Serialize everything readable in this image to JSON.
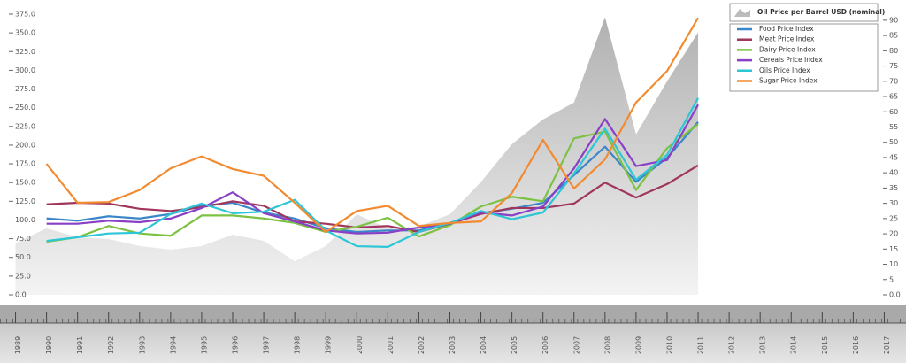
{
  "chart_data": {
    "type": "line",
    "x": [
      1989,
      1990,
      1991,
      1992,
      1993,
      1994,
      1995,
      1996,
      1997,
      1998,
      1999,
      2000,
      2001,
      2002,
      2003,
      2004,
      2005,
      2006,
      2007,
      2008,
      2009,
      2010,
      2011
    ],
    "series": [
      {
        "name": "Oil Price per Barrel USD (nominal)",
        "color": "#b8b8b8",
        "axis": "y2",
        "kind": "area",
        "values": [
          17,
          21.8,
          18.9,
          18.3,
          16,
          14.8,
          16,
          19.7,
          17.7,
          11,
          16,
          26.4,
          21.8,
          22.4,
          26.4,
          37,
          49.4,
          57.5,
          63,
          91,
          52.6,
          70,
          86
        ]
      },
      {
        "name": "Food Price Index",
        "color": "#3a86c8",
        "values": [
          null,
          102,
          99,
          105,
          102,
          108,
          119,
          123,
          110,
          102,
          89,
          84,
          86,
          86,
          96,
          109,
          115,
          123,
          160,
          198,
          151,
          183,
          231
        ]
      },
      {
        "name": "Meat Price Index",
        "color": "#a0365e",
        "values": [
          null,
          121,
          123,
          122,
          115,
          112,
          117,
          125,
          119,
          98,
          95,
          90,
          92,
          84,
          95,
          108,
          116,
          116,
          122,
          150,
          130,
          148,
          173
        ]
      },
      {
        "name": "Dairy Price Index",
        "color": "#7cc242",
        "values": [
          null,
          71,
          77,
          92,
          82,
          79,
          106,
          106,
          102,
          96,
          84,
          91,
          103,
          78,
          93,
          118,
          131,
          125,
          209,
          218,
          140,
          196,
          228
        ]
      },
      {
        "name": "Cereals Price Index",
        "color": "#8a3fc7",
        "values": [
          null,
          95,
          95,
          99,
          97,
          102,
          116,
          137,
          109,
          98,
          86,
          82,
          83,
          90,
          95,
          110,
          106,
          118,
          169,
          235,
          172,
          180,
          254
        ]
      },
      {
        "name": "Oils Price Index",
        "color": "#2dc6d6",
        "values": [
          null,
          72,
          77,
          82,
          83,
          108,
          122,
          109,
          111,
          127,
          86,
          65,
          64,
          84,
          96,
          112,
          101,
          110,
          162,
          222,
          154,
          187,
          263
        ]
      },
      {
        "name": "Sugar Price Index",
        "color": "#f28a30",
        "values": [
          null,
          175,
          123,
          124,
          140,
          169,
          185,
          168,
          159,
          123,
          84,
          112,
          119,
          92,
          96,
          98,
          136,
          207,
          142,
          181,
          257,
          299,
          370
        ]
      }
    ],
    "xlim": [
      1988.5,
      2017.7
    ],
    "xticks": [
      1989,
      1990,
      1991,
      1992,
      1993,
      1994,
      1995,
      1996,
      1997,
      1998,
      1999,
      2000,
      2001,
      2002,
      2003,
      2004,
      2005,
      2006,
      2007,
      2008,
      2009,
      2010,
      2011,
      2012,
      2013,
      2014,
      2015,
      2016,
      2017
    ],
    "ylim": [
      0,
      375
    ],
    "yticks": [
      {
        "value": 0,
        "label": "0.0"
      },
      {
        "value": 25,
        "label": "25.0"
      },
      {
        "value": 50,
        "label": "50.0"
      },
      {
        "value": 75,
        "label": "75.0"
      },
      {
        "value": 100,
        "label": "100.0"
      },
      {
        "value": 125,
        "label": "125.0"
      },
      {
        "value": 150,
        "label": "150.0"
      },
      {
        "value": 175,
        "label": "175.0"
      },
      {
        "value": 200,
        "label": "200.0"
      },
      {
        "value": 225,
        "label": "225.0"
      },
      {
        "value": 250,
        "label": "250.0"
      },
      {
        "value": 275,
        "label": "275.0"
      },
      {
        "value": 300,
        "label": "300.0"
      },
      {
        "value": 325,
        "label": "325.0"
      },
      {
        "value": 350,
        "label": "350.0"
      },
      {
        "value": 375,
        "label": "375.0"
      }
    ],
    "y2lim": [
      0,
      92
    ],
    "y2ticks": [
      {
        "value": 0,
        "label": "0.0"
      },
      5,
      10,
      15,
      20,
      25,
      30,
      35,
      40,
      45,
      50,
      55,
      60,
      65,
      70,
      75,
      80,
      85,
      90
    ],
    "legend": "top-right"
  }
}
